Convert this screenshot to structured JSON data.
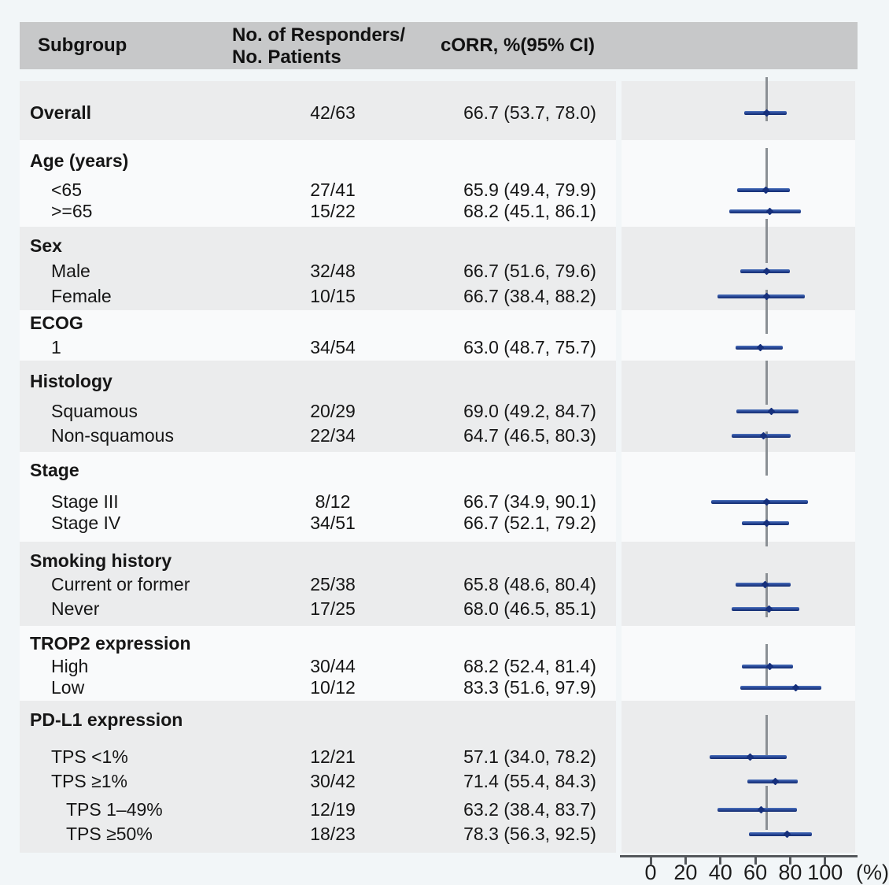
{
  "colors": {
    "page_bg": "#f2f6f8",
    "header_bg": "#c7c8c9",
    "shaded_band": "#ebeced",
    "light_band": "#f9fafb",
    "ci_bar": "#1a3a8c",
    "point_marker": "#16307c",
    "reference_line": "#8b9095",
    "axis": "#54585c",
    "text": "#161616"
  },
  "chart_data": {
    "type": "scatter",
    "subtype": "forest-plot",
    "columns": {
      "subgroup": "Subgroup",
      "responders_line1": "No. of Responders/",
      "responders_line2": "No. Patients",
      "corr": "cORR, %(95% CI)"
    },
    "x_axis": {
      "ticks": [
        0,
        20,
        40,
        60,
        80,
        100
      ],
      "unit_label": "(%)",
      "range": [
        0,
        100
      ]
    },
    "reference_value": 66.7,
    "grid": false,
    "legend": false,
    "sections": [
      {
        "title": "",
        "rows": [
          {
            "label": "Overall",
            "bold": true,
            "level": 0,
            "responders": "42/63",
            "corr_text": "66.7 (53.7, 78.0)",
            "estimate": 66.7,
            "ci_low": 53.7,
            "ci_high": 78.0
          }
        ]
      },
      {
        "title": "Age (years)",
        "rows": [
          {
            "label": "<65",
            "bold": false,
            "level": 1,
            "responders": "27/41",
            "corr_text": "65.9 (49.4, 79.9)",
            "estimate": 65.9,
            "ci_low": 49.4,
            "ci_high": 79.9
          },
          {
            "label": ">=65",
            "bold": false,
            "level": 1,
            "responders": "15/22",
            "corr_text": "68.2 (45.1, 86.1)",
            "estimate": 68.2,
            "ci_low": 45.1,
            "ci_high": 86.1
          }
        ]
      },
      {
        "title": "Sex",
        "rows": [
          {
            "label": "Male",
            "bold": false,
            "level": 1,
            "responders": "32/48",
            "corr_text": "66.7 (51.6, 79.6)",
            "estimate": 66.7,
            "ci_low": 51.6,
            "ci_high": 79.6
          },
          {
            "label": "Female",
            "bold": false,
            "level": 1,
            "responders": "10/15",
            "corr_text": "66.7 (38.4, 88.2)",
            "estimate": 66.7,
            "ci_low": 38.4,
            "ci_high": 88.2
          }
        ]
      },
      {
        "title": "ECOG",
        "rows": [
          {
            "label": "1",
            "bold": false,
            "level": 1,
            "responders": "34/54",
            "corr_text": "63.0 (48.7, 75.7)",
            "estimate": 63.0,
            "ci_low": 48.7,
            "ci_high": 75.7
          }
        ]
      },
      {
        "title": "Histology",
        "rows": [
          {
            "label": "Squamous",
            "bold": false,
            "level": 1,
            "responders": "20/29",
            "corr_text": "69.0 (49.2, 84.7)",
            "estimate": 69.0,
            "ci_low": 49.2,
            "ci_high": 84.7
          },
          {
            "label": "Non-squamous",
            "bold": false,
            "level": 1,
            "responders": "22/34",
            "corr_text": "64.7 (46.5, 80.3)",
            "estimate": 64.7,
            "ci_low": 46.5,
            "ci_high": 80.3
          }
        ]
      },
      {
        "title": "Stage",
        "rows": [
          {
            "label": "Stage III",
            "bold": false,
            "level": 1,
            "responders": "8/12",
            "corr_text": "66.7 (34.9, 90.1)",
            "estimate": 66.7,
            "ci_low": 34.9,
            "ci_high": 90.1
          },
          {
            "label": "Stage IV",
            "bold": false,
            "level": 1,
            "responders": "34/51",
            "corr_text": "66.7 (52.1, 79.2)",
            "estimate": 66.7,
            "ci_low": 52.1,
            "ci_high": 79.2
          }
        ]
      },
      {
        "title": "Smoking history",
        "rows": [
          {
            "label": "Current or former",
            "bold": false,
            "level": 1,
            "responders": "25/38",
            "corr_text": "65.8 (48.6, 80.4)",
            "estimate": 65.8,
            "ci_low": 48.6,
            "ci_high": 80.4
          },
          {
            "label": "Never",
            "bold": false,
            "level": 1,
            "responders": "17/25",
            "corr_text": "68.0 (46.5, 85.1)",
            "estimate": 68.0,
            "ci_low": 46.5,
            "ci_high": 85.1
          }
        ]
      },
      {
        "title": "TROP2 expression",
        "rows": [
          {
            "label": "High",
            "bold": false,
            "level": 1,
            "responders": "30/44",
            "corr_text": "68.2 (52.4, 81.4)",
            "estimate": 68.2,
            "ci_low": 52.4,
            "ci_high": 81.4
          },
          {
            "label": "Low",
            "bold": false,
            "level": 1,
            "responders": "10/12",
            "corr_text": "83.3 (51.6, 97.9)",
            "estimate": 83.3,
            "ci_low": 51.6,
            "ci_high": 97.9
          }
        ]
      },
      {
        "title": "PD-L1 expression",
        "rows": [
          {
            "label": "TPS <1%",
            "bold": false,
            "level": 1,
            "responders": "12/21",
            "corr_text": "57.1 (34.0, 78.2)",
            "estimate": 57.1,
            "ci_low": 34.0,
            "ci_high": 78.2
          },
          {
            "label": "TPS ≥1%",
            "bold": false,
            "level": 1,
            "responders": "30/42",
            "corr_text": "71.4 (55.4, 84.3)",
            "estimate": 71.4,
            "ci_low": 55.4,
            "ci_high": 84.3
          },
          {
            "label": "TPS 1–49%",
            "bold": false,
            "level": 2,
            "responders": "12/19",
            "corr_text": "63.2 (38.4, 83.7)",
            "estimate": 63.2,
            "ci_low": 38.4,
            "ci_high": 83.7
          },
          {
            "label": "TPS ≥50%",
            "bold": false,
            "level": 2,
            "responders": "18/23",
            "corr_text": "78.3 (56.3, 92.5)",
            "estimate": 78.3,
            "ci_low": 56.3,
            "ci_high": 92.5
          }
        ]
      }
    ]
  }
}
